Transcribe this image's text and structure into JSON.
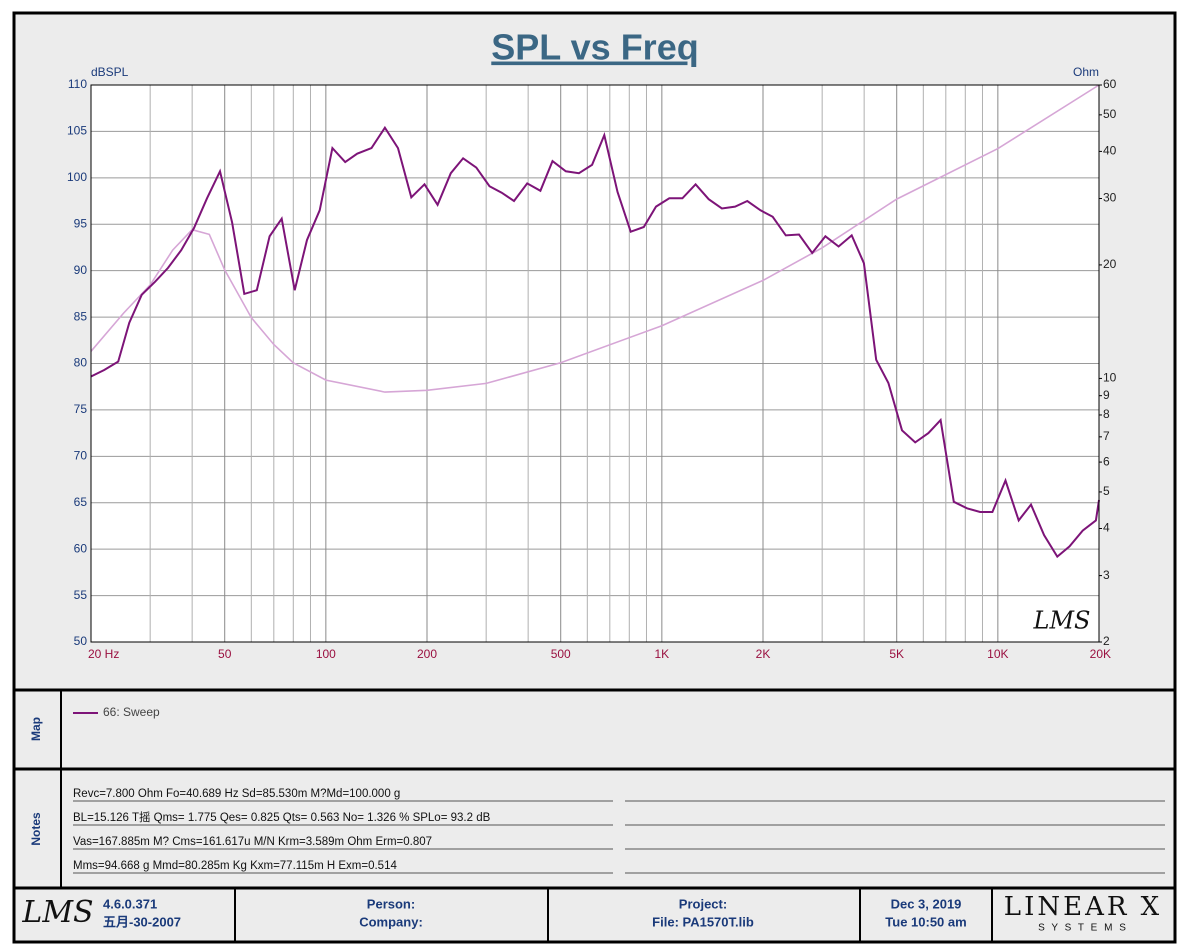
{
  "chart_data": {
    "type": "line",
    "title": "SPL vs Freq",
    "ylabel": "dBSPL",
    "y2label": "Ohm",
    "watermark": "LMS",
    "xscale": "log",
    "y2scale": "log",
    "grid": true,
    "xlim": [
      20,
      20000
    ],
    "ylim": [
      50,
      110
    ],
    "y2lim": [
      2,
      60
    ],
    "xticks": [
      {
        "value": 20,
        "label": "20  Hz"
      },
      50,
      100,
      200,
      500,
      {
        "value": 1000,
        "label": "1K"
      },
      {
        "value": 2000,
        "label": "2K"
      },
      {
        "value": 5000,
        "label": "5K"
      },
      {
        "value": 10000,
        "label": "10K"
      },
      {
        "value": 20000,
        "label": "20K"
      }
    ],
    "xgrid": [
      30,
      40,
      60,
      70,
      80,
      90,
      300,
      400,
      600,
      700,
      800,
      900,
      3000,
      4000,
      6000,
      7000,
      8000,
      9000
    ],
    "yticks": [
      50,
      55,
      60,
      65,
      70,
      75,
      80,
      85,
      90,
      95,
      100,
      105,
      110
    ],
    "y2ticks": [
      2,
      3,
      4,
      5,
      6,
      7,
      8,
      9,
      10,
      20,
      30,
      40,
      50,
      60
    ],
    "series": [
      {
        "name": "66: Sweep",
        "color": "#7d1478",
        "x": [
          20,
          21.9,
          24.1,
          26,
          28.3,
          31,
          33.9,
          37.1,
          40.5,
          44.3,
          48.4,
          52.6,
          57.2,
          62.3,
          68,
          73.9,
          80.8,
          87.9,
          95.9,
          104.6,
          114.2,
          124,
          136.7,
          149.9,
          163.9,
          179.6,
          196.6,
          215.1,
          235.4,
          256.1,
          280.4,
          306.9,
          333.8,
          363.1,
          397.4,
          435,
          472.7,
          517.6,
          566.5,
          620.1,
          674,
          737.7,
          807.5,
          883.9,
          960.7,
          1052,
          1151,
          1260,
          1379,
          1509,
          1652,
          1796,
          1966,
          2137,
          2339,
          2560,
          2802,
          3067,
          3357,
          3674,
          3994,
          4343,
          4722,
          5185,
          5675,
          6212,
          6755,
          7393,
          8092,
          8857,
          9630,
          10541,
          11537,
          12546,
          13731,
          15029,
          16343,
          17888,
          19580,
          20000
        ],
        "values": [
          78.6,
          79.3,
          80.2,
          84.4,
          87.4,
          88.8,
          90.3,
          92.2,
          94.6,
          97.8,
          100.7,
          95.2,
          87.5,
          87.9,
          93.7,
          95.6,
          87.9,
          93.3,
          96.5,
          103.2,
          101.7,
          102.6,
          103.2,
          105.4,
          103.2,
          97.9,
          99.3,
          97.1,
          100.5,
          102.1,
          101.1,
          99.1,
          98.4,
          97.5,
          99.4,
          98.6,
          101.8,
          100.7,
          100.5,
          101.4,
          104.6,
          98.5,
          94.2,
          94.7,
          96.9,
          97.8,
          97.8,
          99.3,
          97.7,
          96.7,
          96.9,
          97.5,
          96.5,
          95.8,
          93.8,
          93.9,
          91.9,
          93.7,
          92.6,
          93.8,
          90.8,
          80.4,
          77.9,
          72.8,
          71.5,
          72.5,
          73.9,
          65.1,
          64.4,
          64,
          64,
          67.4,
          63.1,
          64.8,
          61.5,
          59.2,
          60.3,
          62,
          63.1,
          65.3
        ]
      },
      {
        "color": "#d6a6d6",
        "axis": "y2",
        "x": [
          20,
          25,
          30,
          35,
          40,
          45,
          50,
          60,
          70,
          80,
          100,
          150,
          200,
          300,
          500,
          1000,
          2000,
          3000,
          5000,
          10000,
          20000
        ],
        "values": [
          11.8,
          14.9,
          17.7,
          21.9,
          24.8,
          24.1,
          19.4,
          14.5,
          12.3,
          11,
          9.9,
          9.2,
          9.3,
          9.7,
          11,
          13.8,
          18.2,
          22.2,
          29.9,
          40.7,
          60
        ]
      }
    ]
  },
  "map": {
    "label": "Map"
  },
  "notes": {
    "label": "Notes",
    "lines": [
      "Revc=7.800 Ohm  Fo=40.689 Hz  Sd=85.530m M?Md=100.000 g",
      "BL=15.126 T摇  Qms= 1.775  Qes= 0.825  Qts= 0.563  No= 1.326 %  SPLo= 93.2 dB",
      "Vas=167.885m M? Cms=161.617u M/N  Krm=3.589m Ohm  Erm=0.807",
      "Mms=94.668 g  Mmd=80.285m Kg  Kxm=77.115m H  Exm=0.514"
    ]
  },
  "footer": {
    "logo": "LMS",
    "version": "4.6.0.371",
    "build_date": "五月-30-2007",
    "person": "Person:",
    "company": "Company:",
    "project": "Project:",
    "file": "File: PA1570T.lib",
    "date": "Dec  3, 2019",
    "time": "Tue 10:50 am",
    "brand": "LINEAR X",
    "brand_sub": "S Y S T E M S"
  }
}
